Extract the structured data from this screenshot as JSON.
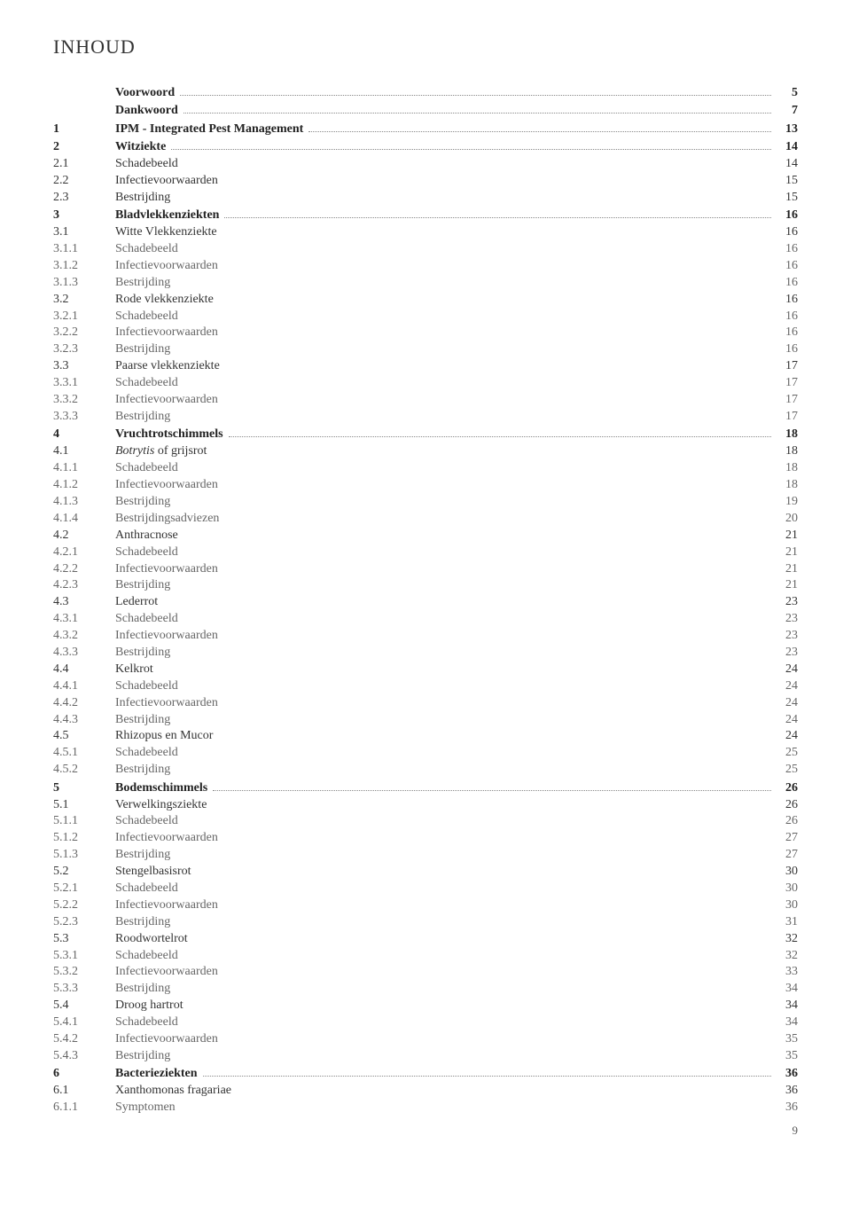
{
  "page_title": "INHOUD",
  "footer_page_number": "9",
  "toc": [
    {
      "num": "",
      "label": "Voorwoord",
      "page": "5",
      "style": "bold",
      "leader": true
    },
    {
      "num": "",
      "label": "Dankwoord",
      "page": "7",
      "style": "bold",
      "leader": true
    },
    {
      "num": "1",
      "label": "IPM - Integrated Pest Management",
      "page": "13",
      "style": "bold",
      "leader": true
    },
    {
      "num": "2",
      "label": "Witziekte",
      "page": "14",
      "style": "bold",
      "leader": true
    },
    {
      "num": "2.1",
      "label": "Schadebeeld",
      "page": "14",
      "style": "normal",
      "leader": false
    },
    {
      "num": "2.2",
      "label": "Infectievoorwaarden",
      "page": "15",
      "style": "normal",
      "leader": false
    },
    {
      "num": "2.3",
      "label": "Bestrijding",
      "page": "15",
      "style": "normal",
      "leader": false
    },
    {
      "num": "3",
      "label": "Bladvlekkenziekten",
      "page": "16",
      "style": "bold",
      "leader": true
    },
    {
      "num": "3.1",
      "label": "Witte Vlekkenziekte",
      "page": "16",
      "style": "normal",
      "leader": false
    },
    {
      "num": "3.1.1",
      "label": "Schadebeeld",
      "page": "16",
      "style": "sub",
      "leader": false
    },
    {
      "num": "3.1.2",
      "label": "Infectievoorwaarden",
      "page": "16",
      "style": "sub",
      "leader": false
    },
    {
      "num": "3.1.3",
      "label": "Bestrijding",
      "page": "16",
      "style": "sub",
      "leader": false
    },
    {
      "num": "3.2",
      "label": "Rode vlekkenziekte",
      "page": "16",
      "style": "normal",
      "leader": false
    },
    {
      "num": "3.2.1",
      "label": "Schadebeeld",
      "page": "16",
      "style": "sub",
      "leader": false
    },
    {
      "num": "3.2.2",
      "label": "Infectievoorwaarden",
      "page": "16",
      "style": "sub",
      "leader": false
    },
    {
      "num": "3.2.3",
      "label": "Bestrijding",
      "page": "16",
      "style": "sub",
      "leader": false
    },
    {
      "num": "3.3",
      "label": "Paarse vlekkenziekte",
      "page": "17",
      "style": "normal",
      "leader": false
    },
    {
      "num": "3.3.1",
      "label": "Schadebeeld",
      "page": "17",
      "style": "sub",
      "leader": false
    },
    {
      "num": "3.3.2",
      "label": "Infectievoorwaarden",
      "page": "17",
      "style": "sub",
      "leader": false
    },
    {
      "num": "3.3.3",
      "label": "Bestrijding",
      "page": "17",
      "style": "sub",
      "leader": false
    },
    {
      "num": "4",
      "label": "Vruchtrotschimmels",
      "page": "18",
      "style": "bold",
      "leader": true
    },
    {
      "num": "4.1",
      "label": "Botrytis of grijsrot",
      "page": "18",
      "style": "normal",
      "leader": false,
      "label_prefix_italic": "Botrytis",
      "label_rest": " of grijsrot"
    },
    {
      "num": "4.1.1",
      "label": "Schadebeeld",
      "page": "18",
      "style": "sub",
      "leader": false
    },
    {
      "num": "4.1.2",
      "label": "Infectievoorwaarden",
      "page": "18",
      "style": "sub",
      "leader": false
    },
    {
      "num": "4.1.3",
      "label": "Bestrijding",
      "page": "19",
      "style": "sub",
      "leader": false
    },
    {
      "num": "4.1.4",
      "label": "Bestrijdingsadviezen",
      "page": "20",
      "style": "sub",
      "leader": false
    },
    {
      "num": "4.2",
      "label": "Anthracnose",
      "page": "21",
      "style": "normal",
      "leader": false
    },
    {
      "num": "4.2.1",
      "label": "Schadebeeld",
      "page": "21",
      "style": "sub",
      "leader": false
    },
    {
      "num": "4.2.2",
      "label": "Infectievoorwaarden",
      "page": "21",
      "style": "sub",
      "leader": false
    },
    {
      "num": "4.2.3",
      "label": "Bestrijding",
      "page": "21",
      "style": "sub",
      "leader": false
    },
    {
      "num": "4.3",
      "label": "Lederrot",
      "page": "23",
      "style": "normal",
      "leader": false
    },
    {
      "num": "4.3.1",
      "label": "Schadebeeld",
      "page": "23",
      "style": "sub",
      "leader": false
    },
    {
      "num": "4.3.2",
      "label": "Infectievoorwaarden",
      "page": "23",
      "style": "sub",
      "leader": false
    },
    {
      "num": "4.3.3",
      "label": "Bestrijding",
      "page": "23",
      "style": "sub",
      "leader": false
    },
    {
      "num": "4.4",
      "label": "Kelkrot",
      "page": "24",
      "style": "normal",
      "leader": false
    },
    {
      "num": "4.4.1",
      "label": "Schadebeeld",
      "page": "24",
      "style": "sub",
      "leader": false
    },
    {
      "num": "4.4.2",
      "label": "Infectievoorwaarden",
      "page": "24",
      "style": "sub",
      "leader": false
    },
    {
      "num": "4.4.3",
      "label": "Bestrijding",
      "page": "24",
      "style": "sub",
      "leader": false
    },
    {
      "num": "4.5",
      "label": "Rhizopus en Mucor",
      "page": "24",
      "style": "normal",
      "leader": false
    },
    {
      "num": "4.5.1",
      "label": "Schadebeeld",
      "page": "25",
      "style": "sub",
      "leader": false
    },
    {
      "num": "4.5.2",
      "label": "Bestrijding",
      "page": "25",
      "style": "sub",
      "leader": false
    },
    {
      "num": "5",
      "label": "Bodemschimmels",
      "page": "26",
      "style": "bold",
      "leader": true
    },
    {
      "num": "5.1",
      "label": "Verwelkingsziekte",
      "page": "26",
      "style": "normal",
      "leader": false
    },
    {
      "num": "5.1.1",
      "label": "Schadebeeld",
      "page": "26",
      "style": "sub",
      "leader": false
    },
    {
      "num": "5.1.2",
      "label": "Infectievoorwaarden",
      "page": "27",
      "style": "sub",
      "leader": false
    },
    {
      "num": "5.1.3",
      "label": "Bestrijding",
      "page": "27",
      "style": "sub",
      "leader": false
    },
    {
      "num": "5.2",
      "label": "Stengelbasisrot",
      "page": "30",
      "style": "normal",
      "leader": false
    },
    {
      "num": "5.2.1",
      "label": "Schadebeeld",
      "page": "30",
      "style": "sub",
      "leader": false
    },
    {
      "num": "5.2.2",
      "label": "Infectievoorwaarden",
      "page": "30",
      "style": "sub",
      "leader": false
    },
    {
      "num": "5.2.3",
      "label": "Bestrijding",
      "page": "31",
      "style": "sub",
      "leader": false
    },
    {
      "num": "5.3",
      "label": "Roodwortelrot",
      "page": "32",
      "style": "normal",
      "leader": false
    },
    {
      "num": "5.3.1",
      "label": "Schadebeeld",
      "page": "32",
      "style": "sub",
      "leader": false
    },
    {
      "num": "5.3.2",
      "label": "Infectievoorwaarden",
      "page": "33",
      "style": "sub",
      "leader": false
    },
    {
      "num": "5.3.3",
      "label": "Bestrijding",
      "page": "34",
      "style": "sub",
      "leader": false
    },
    {
      "num": "5.4",
      "label": "Droog hartrot",
      "page": "34",
      "style": "normal",
      "leader": false
    },
    {
      "num": "5.4.1",
      "label": "Schadebeeld",
      "page": "34",
      "style": "sub",
      "leader": false
    },
    {
      "num": "5.4.2",
      "label": "Infectievoorwaarden",
      "page": "35",
      "style": "sub",
      "leader": false
    },
    {
      "num": "5.4.3",
      "label": "Bestrijding",
      "page": "35",
      "style": "sub",
      "leader": false
    },
    {
      "num": "6",
      "label": "Bacterieziekten",
      "page": "36",
      "style": "bold",
      "leader": true
    },
    {
      "num": "6.1",
      "label": "Xanthomonas fragariae",
      "page": "36",
      "style": "normal",
      "leader": false
    },
    {
      "num": "6.1.1",
      "label": "Symptomen",
      "page": "36",
      "style": "sub",
      "leader": false
    }
  ]
}
